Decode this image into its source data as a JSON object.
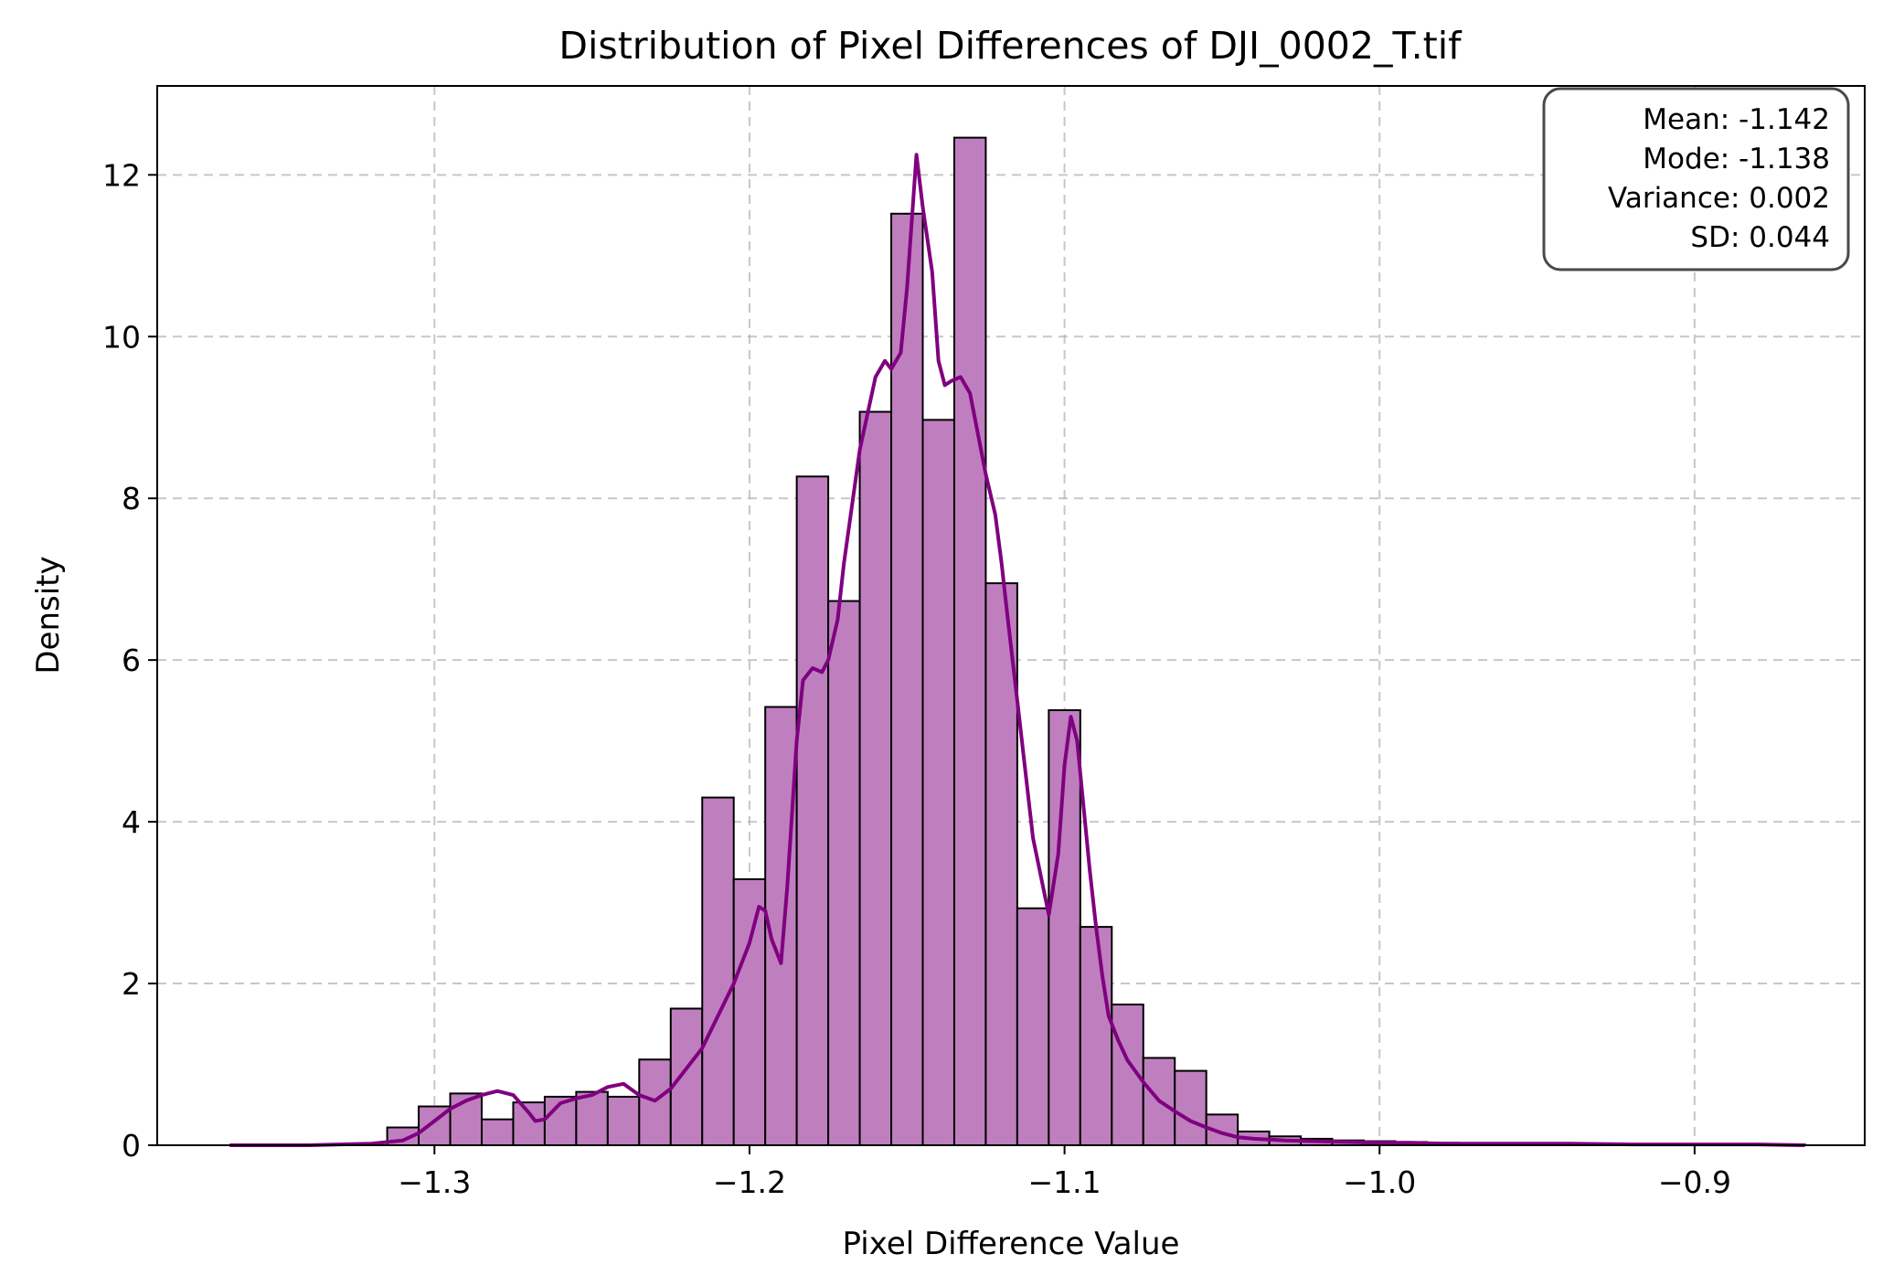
{
  "chart_data": {
    "type": "bar",
    "title": "Distribution of Pixel Differences of DJI_0002_T.tif",
    "xlabel": "Pixel Difference Value",
    "ylabel": "Density",
    "xlim": [
      -1.388,
      -0.846
    ],
    "ylim": [
      0,
      13.1
    ],
    "xticks": [
      -1.3,
      -1.2,
      -1.1,
      -1.0,
      -0.9
    ],
    "xtick_labels": [
      "−1.3",
      "−1.2",
      "−1.1",
      "−1.0",
      "−0.9"
    ],
    "yticks": [
      0,
      2,
      4,
      6,
      8,
      10,
      12
    ],
    "ytick_labels": [
      "0",
      "2",
      "4",
      "6",
      "8",
      "10",
      "12"
    ],
    "grid": true,
    "bar_color": "#bf7fbf",
    "line_color": "#800080",
    "bins": {
      "start": -1.365,
      "width": 0.01,
      "values": [
        0,
        0,
        0,
        0,
        0,
        0.22,
        0.48,
        0.64,
        0.32,
        0.53,
        0.6,
        0.66,
        0.6,
        1.06,
        1.69,
        4.3,
        3.29,
        5.42,
        8.27,
        6.73,
        9.07,
        11.52,
        8.97,
        12.46,
        6.95,
        2.93,
        5.38,
        2.7,
        1.74,
        1.08,
        0.92,
        0.38,
        0.17,
        0.11,
        0.08,
        0.06,
        0.05,
        0.04,
        0.03,
        0.02,
        0.02,
        0.02,
        0.02,
        0.01,
        0.01,
        0.01,
        0.01,
        0.01,
        0.01,
        0.01
      ]
    },
    "kde": {
      "x": [
        -1.365,
        -1.34,
        -1.32,
        -1.31,
        -1.305,
        -1.3,
        -1.295,
        -1.29,
        -1.285,
        -1.28,
        -1.275,
        -1.27,
        -1.268,
        -1.265,
        -1.26,
        -1.255,
        -1.25,
        -1.245,
        -1.24,
        -1.235,
        -1.23,
        -1.225,
        -1.22,
        -1.215,
        -1.21,
        -1.205,
        -1.2,
        -1.197,
        -1.195,
        -1.193,
        -1.19,
        -1.188,
        -1.185,
        -1.183,
        -1.18,
        -1.177,
        -1.175,
        -1.172,
        -1.17,
        -1.165,
        -1.16,
        -1.157,
        -1.155,
        -1.152,
        -1.15,
        -1.147,
        -1.145,
        -1.142,
        -1.14,
        -1.138,
        -1.136,
        -1.133,
        -1.13,
        -1.127,
        -1.125,
        -1.122,
        -1.12,
        -1.118,
        -1.115,
        -1.11,
        -1.105,
        -1.102,
        -1.1,
        -1.098,
        -1.096,
        -1.094,
        -1.092,
        -1.09,
        -1.088,
        -1.086,
        -1.083,
        -1.08,
        -1.075,
        -1.07,
        -1.065,
        -1.06,
        -1.055,
        -1.05,
        -1.045,
        -1.04,
        -1.035,
        -1.03,
        -1.02,
        -1.01,
        -1.0,
        -0.99,
        -0.98,
        -0.96,
        -0.94,
        -0.92,
        -0.9,
        -0.88,
        -0.865
      ],
      "y": [
        0.0,
        0.0,
        0.02,
        0.06,
        0.15,
        0.3,
        0.45,
        0.55,
        0.62,
        0.67,
        0.62,
        0.4,
        0.3,
        0.32,
        0.52,
        0.58,
        0.62,
        0.72,
        0.76,
        0.62,
        0.55,
        0.7,
        0.95,
        1.2,
        1.6,
        2.0,
        2.5,
        2.95,
        2.9,
        2.55,
        2.25,
        3.2,
        5.0,
        5.75,
        5.9,
        5.85,
        6.0,
        6.5,
        7.2,
        8.6,
        9.5,
        9.7,
        9.6,
        9.8,
        10.6,
        12.25,
        11.6,
        10.8,
        9.7,
        9.4,
        9.45,
        9.5,
        9.3,
        8.7,
        8.3,
        7.8,
        7.2,
        6.5,
        5.5,
        3.8,
        2.85,
        3.6,
        4.7,
        5.3,
        5.0,
        4.2,
        3.4,
        2.7,
        2.1,
        1.6,
        1.3,
        1.05,
        0.78,
        0.55,
        0.42,
        0.3,
        0.22,
        0.15,
        0.1,
        0.08,
        0.07,
        0.06,
        0.05,
        0.04,
        0.03,
        0.03,
        0.02,
        0.02,
        0.02,
        0.01,
        0.01,
        0.01,
        0.0
      ]
    },
    "stats": [
      {
        "label": "Mean: -1.142"
      },
      {
        "label": "Mode: -1.138"
      },
      {
        "label": "Variance: 0.002"
      },
      {
        "label": "SD: 0.044"
      }
    ],
    "legend_position": "top-right"
  }
}
